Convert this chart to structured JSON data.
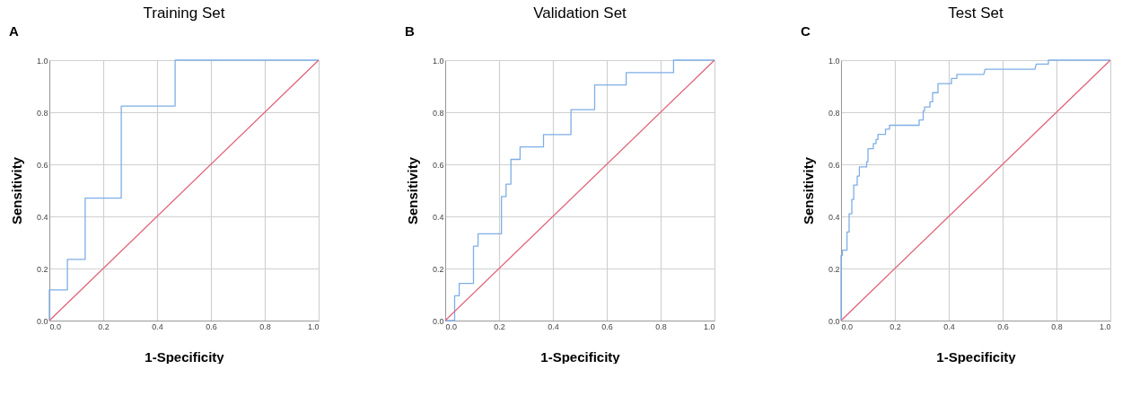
{
  "chart_data": [
    {
      "type": "line",
      "title": "Training Set",
      "xlabel": "1-Specificity",
      "ylabel": "Sensitivity",
      "annotations": [
        "A"
      ],
      "grid": true,
      "xlim": [
        0,
        1
      ],
      "ylim": [
        0,
        1
      ],
      "xticks": [
        {
          "value": 0,
          "label": "0.0"
        },
        {
          "value": 0.2,
          "label": "0.2"
        },
        {
          "value": 0.4,
          "label": "0.4"
        },
        {
          "value": 0.6,
          "label": "0.6"
        },
        {
          "value": 0.8,
          "label": "0.8"
        },
        {
          "value": 1,
          "label": "1.0"
        }
      ],
      "yticks": [
        {
          "value": 0,
          "label": "0.0"
        },
        {
          "value": 0.2,
          "label": "0.2"
        },
        {
          "value": 0.4,
          "label": "0.4"
        },
        {
          "value": 0.6,
          "label": "0.6"
        },
        {
          "value": 0.8,
          "label": "0.8"
        },
        {
          "value": 1,
          "label": "1.0"
        }
      ],
      "series": [
        {
          "color": "#7eaee6",
          "x": [
            0,
            0,
            0.067,
            0.067,
            0.133,
            0.133,
            0.267,
            0.267,
            0.467,
            0.467,
            1
          ],
          "values": [
            0,
            0.118,
            0.118,
            0.235,
            0.235,
            0.47,
            0.47,
            0.824,
            0.824,
            1,
            1
          ]
        },
        {
          "color": "#e0637a",
          "x": [
            0,
            1
          ],
          "values": [
            0,
            1
          ]
        }
      ]
    },
    {
      "type": "line",
      "title": "Validation Set",
      "xlabel": "1-Specificity",
      "ylabel": "Sensitivity",
      "annotations": [
        "B"
      ],
      "grid": true,
      "xlim": [
        0,
        1
      ],
      "ylim": [
        0,
        1
      ],
      "xticks": [
        {
          "value": 0,
          "label": "0.0"
        },
        {
          "value": 0.2,
          "label": "0.2"
        },
        {
          "value": 0.4,
          "label": "0.4"
        },
        {
          "value": 0.6,
          "label": "0.6"
        },
        {
          "value": 0.8,
          "label": "0.8"
        },
        {
          "value": 1,
          "label": "1.0"
        }
      ],
      "yticks": [
        {
          "value": 0,
          "label": "0.0"
        },
        {
          "value": 0.2,
          "label": "0.2"
        },
        {
          "value": 0.4,
          "label": "0.4"
        },
        {
          "value": 0.6,
          "label": "0.6"
        },
        {
          "value": 0.8,
          "label": "0.8"
        },
        {
          "value": 1,
          "label": "1.0"
        }
      ],
      "series": [
        {
          "color": "#7eaee6",
          "x": [
            0,
            0.035,
            0.035,
            0.052,
            0.052,
            0.105,
            0.105,
            0.122,
            0.122,
            0.209,
            0.209,
            0.226,
            0.226,
            0.244,
            0.244,
            0.278,
            0.278,
            0.365,
            0.365,
            0.467,
            0.467,
            0.555,
            0.555,
            0.672,
            0.672,
            0.848,
            0.848,
            1
          ],
          "values": [
            0,
            0,
            0.095,
            0.095,
            0.143,
            0.143,
            0.286,
            0.286,
            0.333,
            0.333,
            0.476,
            0.476,
            0.524,
            0.524,
            0.619,
            0.619,
            0.667,
            0.667,
            0.714,
            0.714,
            0.81,
            0.81,
            0.905,
            0.905,
            0.952,
            0.952,
            1,
            1
          ]
        },
        {
          "color": "#e0637a",
          "x": [
            0,
            1
          ],
          "values": [
            0,
            1
          ]
        }
      ]
    },
    {
      "type": "line",
      "title": "Test Set",
      "xlabel": "1-Specificity",
      "ylabel": "Sensitivity",
      "annotations": [
        "C"
      ],
      "grid": true,
      "xlim": [
        0,
        1
      ],
      "ylim": [
        0,
        1
      ],
      "xticks": [
        {
          "value": 0,
          "label": "0.0"
        },
        {
          "value": 0.2,
          "label": "0.2"
        },
        {
          "value": 0.4,
          "label": "0.4"
        },
        {
          "value": 0.6,
          "label": "0.6"
        },
        {
          "value": 0.8,
          "label": "0.8"
        },
        {
          "value": 1,
          "label": "1.0"
        }
      ],
      "yticks": [
        {
          "value": 0,
          "label": "0.0"
        },
        {
          "value": 0.2,
          "label": "0.2"
        },
        {
          "value": 0.4,
          "label": "0.4"
        },
        {
          "value": 0.6,
          "label": "0.6"
        },
        {
          "value": 0.8,
          "label": "0.8"
        },
        {
          "value": 1,
          "label": "1.0"
        }
      ],
      "series": [
        {
          "color": "#7eaee6",
          "x": [
            0,
            0,
            0.005,
            0.005,
            0.022,
            0.022,
            0.03,
            0.03,
            0.04,
            0.04,
            0.047,
            0.047,
            0.06,
            0.06,
            0.068,
            0.068,
            0.095,
            0.095,
            0.1,
            0.1,
            0.12,
            0.12,
            0.13,
            0.13,
            0.137,
            0.137,
            0.165,
            0.165,
            0.18,
            0.18,
            0.29,
            0.29,
            0.305,
            0.305,
            0.31,
            0.31,
            0.33,
            0.33,
            0.34,
            0.34,
            0.36,
            0.36,
            0.41,
            0.41,
            0.43,
            0.43,
            0.53,
            0.535,
            0.72,
            0.725,
            0.77,
            0.77,
            1
          ],
          "values": [
            0,
            0.25,
            0.25,
            0.27,
            0.27,
            0.34,
            0.34,
            0.41,
            0.41,
            0.465,
            0.465,
            0.52,
            0.52,
            0.555,
            0.555,
            0.59,
            0.59,
            0.61,
            0.61,
            0.66,
            0.66,
            0.68,
            0.68,
            0.695,
            0.695,
            0.715,
            0.715,
            0.735,
            0.735,
            0.75,
            0.75,
            0.77,
            0.77,
            0.805,
            0.805,
            0.82,
            0.82,
            0.84,
            0.84,
            0.875,
            0.875,
            0.91,
            0.91,
            0.93,
            0.93,
            0.945,
            0.945,
            0.965,
            0.965,
            0.985,
            0.985,
            1,
            1
          ]
        },
        {
          "color": "#e0637a",
          "x": [
            0,
            1
          ],
          "values": [
            0,
            1
          ]
        }
      ]
    }
  ]
}
